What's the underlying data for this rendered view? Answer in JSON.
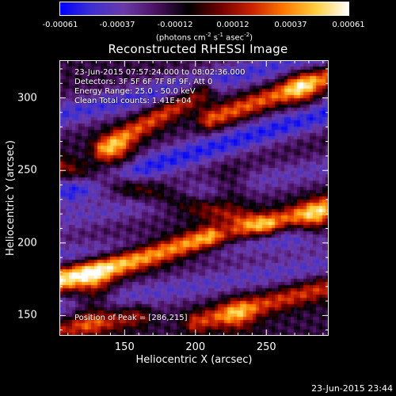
{
  "colorbar": {
    "ticks": [
      "-0.00061",
      "-0.00037",
      "-0.00012",
      "0.00012",
      "0.00037",
      "0.00061"
    ],
    "unit_prefix": "(photons cm",
    "unit_exp1": "-2",
    "unit_mid1": " s",
    "unit_exp2": "-1",
    "unit_mid2": " asec",
    "unit_exp3": "-2",
    "unit_suffix": ")"
  },
  "info": {
    "time_range": "23-Jun-2015 07:57:24.000 to 08:02:36.000",
    "detectors": "Detectors: 3F 5F 6F 7F 8F 9F, Att 0",
    "energy": "Energy Range: 25.0 - 50.0 keV",
    "clean": "Clean     Total counts: 1.41E+04",
    "peak": "Position of Peak = [286,215]"
  },
  "timestamp": "23-Jun-2015 23:44",
  "colors": {
    "background": "#000000",
    "text": "#ffffff",
    "cmap": [
      "#0000ff",
      "#4030d0",
      "#6a3aa8",
      "#4a1060",
      "#000000",
      "#700000",
      "#cc2200",
      "#ff7a00",
      "#ffd040",
      "#ffffff"
    ]
  },
  "chart_data": {
    "type": "heatmap",
    "title": "Reconstructed RHESSI Image",
    "xlabel": "Heliocentric X (arcsec)",
    "ylabel": "Heliocentric Y (arcsec)",
    "xlim": [
      104,
      294
    ],
    "ylim": [
      136,
      326
    ],
    "xticks": [
      150,
      200,
      250
    ],
    "yticks": [
      150,
      200,
      250,
      300
    ],
    "value_range": [
      -0.00061,
      0.00061
    ],
    "grid": false,
    "bright_bands": [
      {
        "from": [
          135,
          265
        ],
        "to": [
          205,
          305
        ],
        "peak": [
          145,
          262
        ],
        "value": 0.00055
      },
      {
        "from": [
          210,
          285
        ],
        "to": [
          294,
          315
        ],
        "peak": [
          275,
          307
        ],
        "value": 0.00058
      },
      {
        "from": [
          104,
          252
        ],
        "to": [
          250,
          212
        ],
        "peak": [
          225,
          238
        ],
        "value": 0.00035
      },
      {
        "from": [
          104,
          172
        ],
        "to": [
          294,
          225
        ],
        "peak": [
          286,
          215
        ],
        "value": 0.00061
      },
      {
        "from": [
          104,
          178
        ],
        "to": [
          210,
          205
        ],
        "peak": [
          130,
          170
        ],
        "value": 0.00052
      },
      {
        "from": [
          200,
          145
        ],
        "to": [
          294,
          170
        ],
        "peak": [
          230,
          150
        ],
        "value": 0.0005
      },
      {
        "from": [
          104,
          140
        ],
        "to": [
          160,
          150
        ],
        "peak": [
          125,
          150
        ],
        "value": 0.0004
      }
    ],
    "dark_bands": [
      {
        "from": [
          104,
          288
        ],
        "to": [
          294,
          330
        ],
        "value": -0.00045
      },
      {
        "from": [
          110,
          236
        ],
        "to": [
          294,
          290
        ],
        "value": -0.00055
      },
      {
        "from": [
          104,
          215
        ],
        "to": [
          294,
          252
        ],
        "value": -0.0003
      },
      {
        "from": [
          104,
          190
        ],
        "to": [
          294,
          205
        ],
        "value": -0.0004
      },
      {
        "from": [
          104,
          155
        ],
        "to": [
          294,
          185
        ],
        "value": -0.00035
      }
    ],
    "peak_position": [
      286,
      215
    ]
  }
}
